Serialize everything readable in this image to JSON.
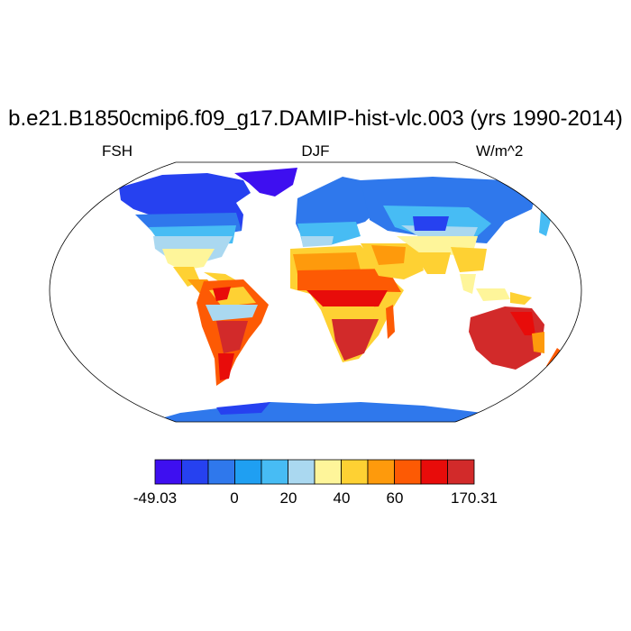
{
  "title": "b.e21.B1850cmip6.f09_g17.DAMIP-hist-vlc.003 (yrs 1990-2014)",
  "left_label": "FSH",
  "center_label": "DJF",
  "right_label": "W/m^2",
  "colorbar": {
    "colors": [
      "#3e0ff0",
      "#2641f0",
      "#2f78ec",
      "#1f9ff2",
      "#47bcf4",
      "#aad8f0",
      "#fef59a",
      "#fed133",
      "#fe9a0c",
      "#fd5a04",
      "#e80c0a",
      "#d22a2a"
    ],
    "tick_labels": [
      "-49.03",
      "0",
      "20",
      "40",
      "60",
      "170.31"
    ]
  },
  "map": {
    "projection": "robinson",
    "ocean_color": "#ffffff",
    "coastline_color": "#000000"
  }
}
